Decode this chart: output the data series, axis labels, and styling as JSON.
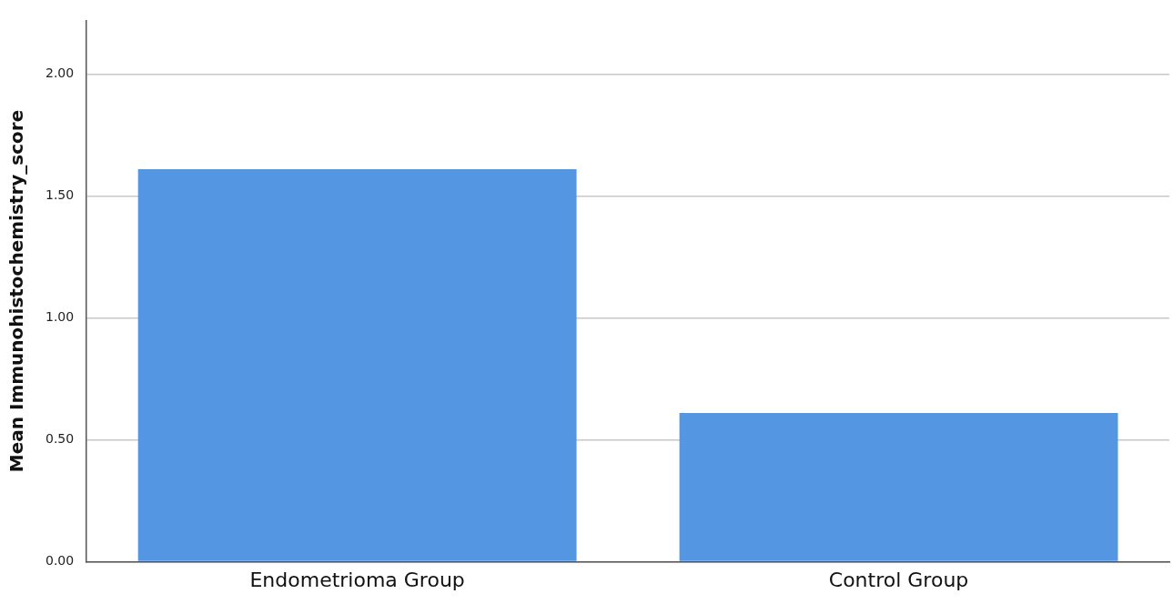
{
  "chart_data": {
    "type": "bar",
    "ylabel": "Mean Immunohistochemistry_score",
    "categories": [
      "Endometrioma Group",
      "Control Group"
    ],
    "values": [
      1.61,
      0.61
    ],
    "color": "#5596e3",
    "ylim": [
      0,
      2.22
    ],
    "yticks": [
      {
        "value": 0,
        "label": "0.00"
      },
      {
        "value": 0.5,
        "label": "0.50"
      },
      {
        "value": 1,
        "label": "1.00"
      },
      {
        "value": 1.5,
        "label": "1.50"
      },
      {
        "value": 2,
        "label": "2.00"
      }
    ],
    "grid": "y"
  }
}
